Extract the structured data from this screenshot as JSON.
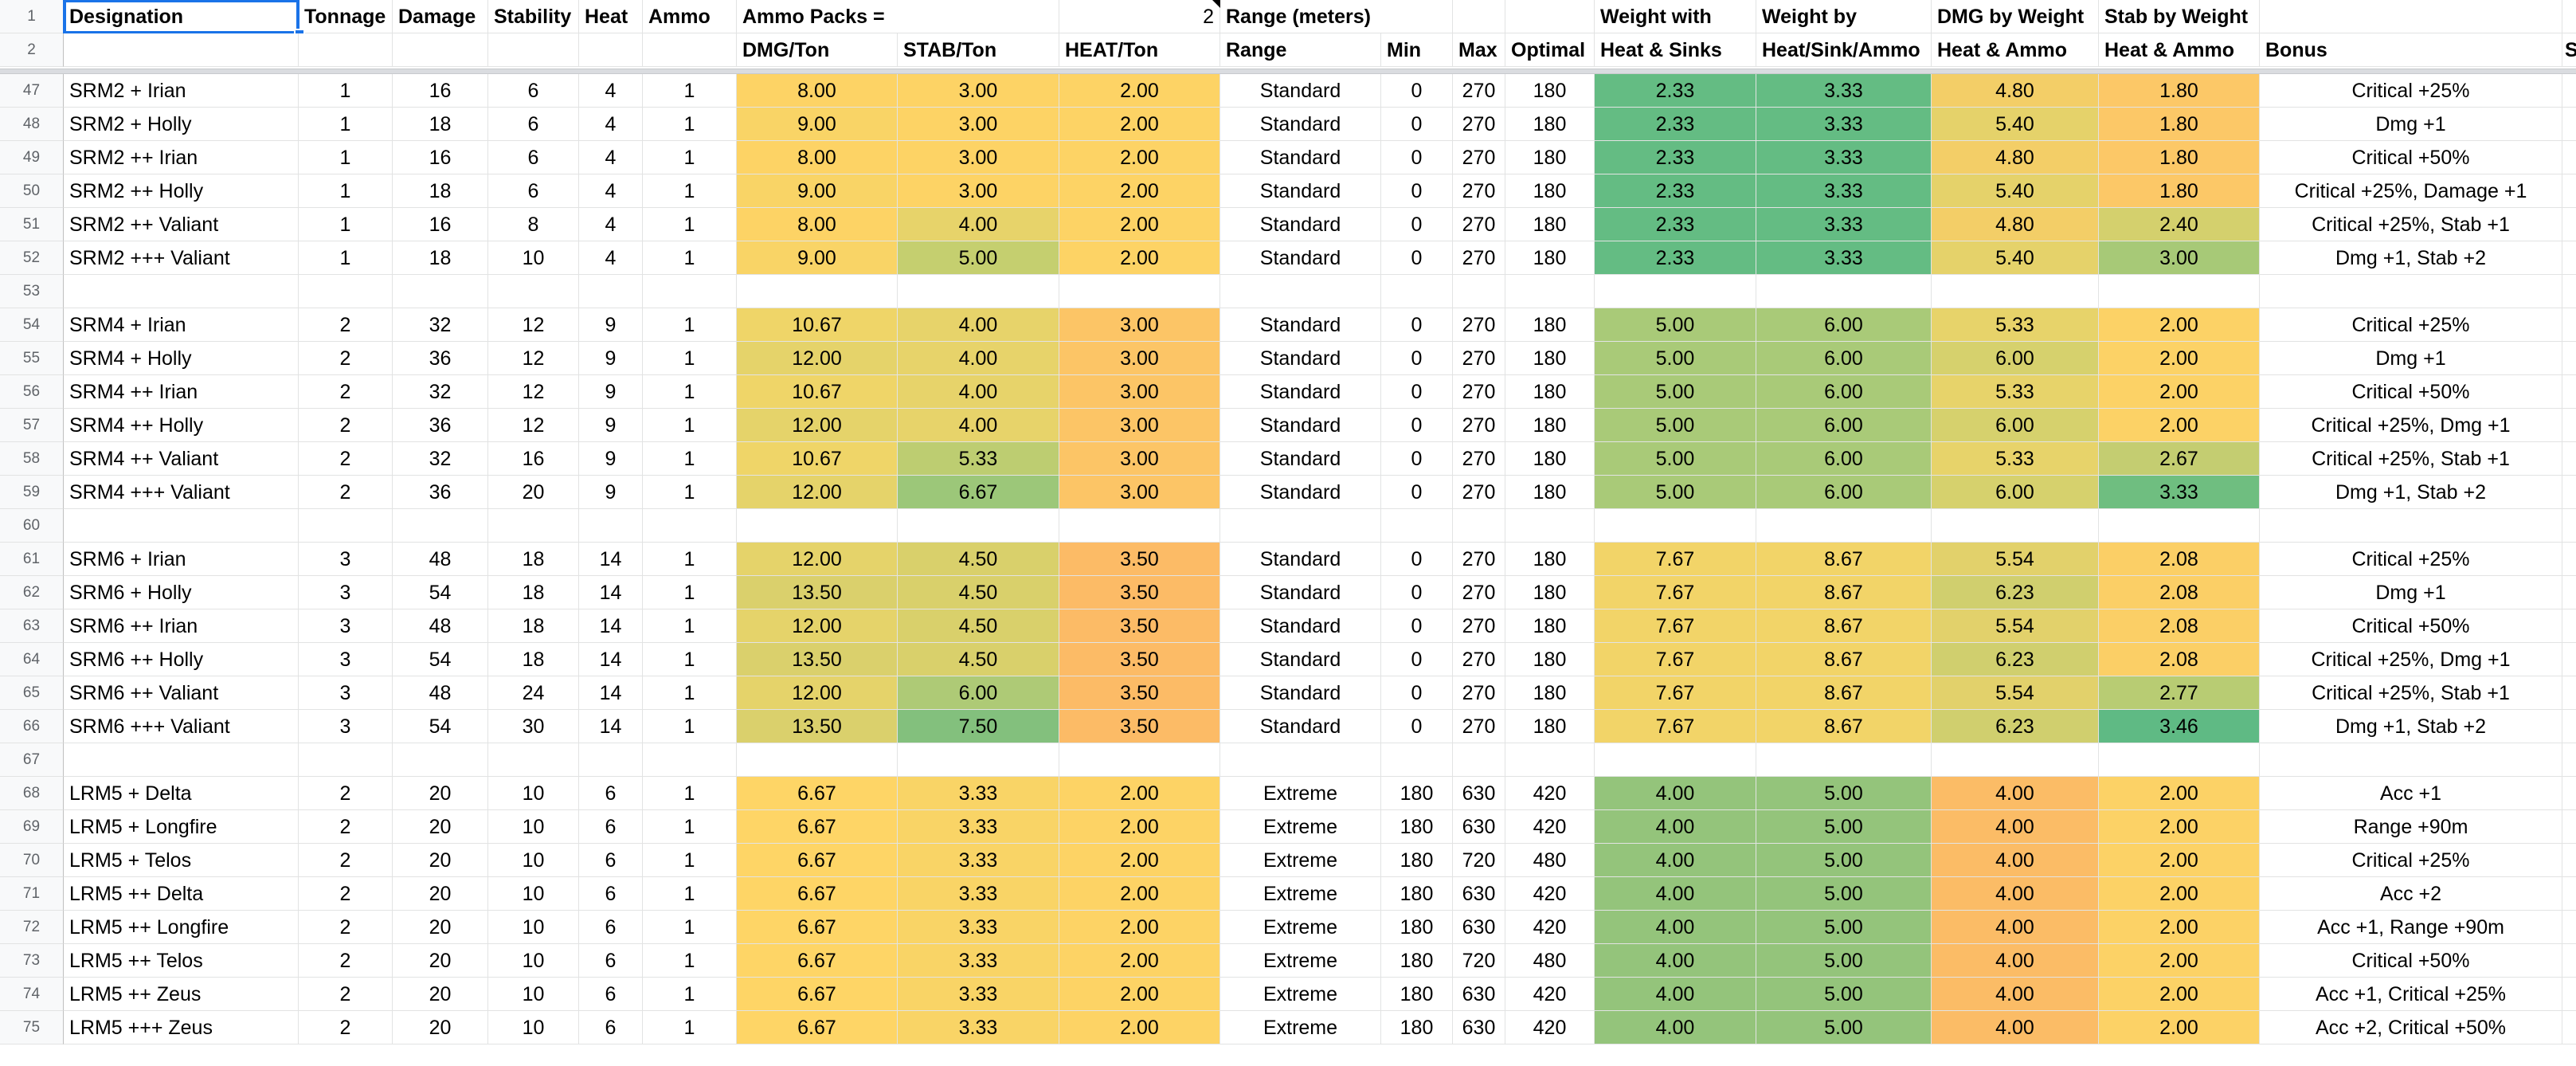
{
  "header": {
    "row1": {
      "num": "1",
      "designation": "Designation",
      "tonnage": "Tonnage",
      "damage": "Damage",
      "stability": "Stability",
      "heat": "Heat",
      "ammo": "Ammo",
      "ammo_packs": "Ammo Packs =",
      "ammo_packs_value": "2",
      "range_meters": "Range (meters)",
      "weight_with": "Weight with",
      "weight_by": "Weight by",
      "dmg_by_weight": "DMG by Weight",
      "stab_by_weight": "Stab by Weight"
    },
    "row2": {
      "num": "2",
      "dmg_ton": "DMG/Ton",
      "stab_ton": "STAB/Ton",
      "heat_ton": "HEAT/Ton",
      "range": "Range",
      "min": "Min",
      "max": "Max",
      "optimal": "Optimal",
      "heat_sinks": "Heat & Sinks",
      "heat_sink_ammo": "Heat/Sink/Ammo",
      "heat_ammo_dmg": "Heat & Ammo",
      "heat_ammo_stab": "Heat & Ammo",
      "bonus": "Bonus",
      "next_col_partial": "S"
    }
  },
  "colors": {
    "selection": "#1a73e8",
    "gridline": "#e2e3e3",
    "row_header_bg": "#f8f9fa"
  },
  "rows": [
    {
      "num": "47",
      "designation": "SRM2 + Irian",
      "tonnage": "1",
      "damage": "16",
      "stability": "6",
      "heat": "4",
      "ammo": "1",
      "dmg_ton": "8.00",
      "stab_ton": "3.00",
      "heat_ton": "2.00",
      "range": "Standard",
      "min": "0",
      "max": "270",
      "optimal": "180",
      "w_sinks": "2.33",
      "w_ammo": "3.33",
      "dmg_w": "4.80",
      "stab_w": "1.80",
      "bonus": "Critical +25%",
      "bg": [
        "#fdd365",
        "#fdd365",
        "#fdd365",
        "#64bc83",
        "#64bc83",
        "#f3ce67",
        "#fcc867"
      ]
    },
    {
      "num": "48",
      "designation": "SRM2 + Holly",
      "tonnage": "1",
      "damage": "18",
      "stability": "6",
      "heat": "4",
      "ammo": "1",
      "dmg_ton": "9.00",
      "stab_ton": "3.00",
      "heat_ton": "2.00",
      "range": "Standard",
      "min": "0",
      "max": "270",
      "optimal": "180",
      "w_sinks": "2.33",
      "w_ammo": "3.33",
      "dmg_w": "5.40",
      "stab_w": "1.80",
      "bonus": "Dmg +1",
      "bg": [
        "#f9d466",
        "#fdd365",
        "#fdd365",
        "#64bc83",
        "#64bc83",
        "#e5d26a",
        "#fcc867"
      ]
    },
    {
      "num": "49",
      "designation": "SRM2 ++ Irian",
      "tonnage": "1",
      "damage": "16",
      "stability": "6",
      "heat": "4",
      "ammo": "1",
      "dmg_ton": "8.00",
      "stab_ton": "3.00",
      "heat_ton": "2.00",
      "range": "Standard",
      "min": "0",
      "max": "270",
      "optimal": "180",
      "w_sinks": "2.33",
      "w_ammo": "3.33",
      "dmg_w": "4.80",
      "stab_w": "1.80",
      "bonus": "Critical +50%",
      "bg": [
        "#fdd365",
        "#fdd365",
        "#fdd365",
        "#64bc83",
        "#64bc83",
        "#f3ce67",
        "#fcc867"
      ]
    },
    {
      "num": "50",
      "designation": "SRM2 ++ Holly",
      "tonnage": "1",
      "damage": "18",
      "stability": "6",
      "heat": "4",
      "ammo": "1",
      "dmg_ton": "9.00",
      "stab_ton": "3.00",
      "heat_ton": "2.00",
      "range": "Standard",
      "min": "0",
      "max": "270",
      "optimal": "180",
      "w_sinks": "2.33",
      "w_ammo": "3.33",
      "dmg_w": "5.40",
      "stab_w": "1.80",
      "bonus": "Critical +25%, Damage +1",
      "bg": [
        "#f9d466",
        "#fdd365",
        "#fdd365",
        "#64bc83",
        "#64bc83",
        "#e5d26a",
        "#fcc867"
      ]
    },
    {
      "num": "51",
      "designation": "SRM2 ++ Valiant",
      "tonnage": "1",
      "damage": "16",
      "stability": "8",
      "heat": "4",
      "ammo": "1",
      "dmg_ton": "8.00",
      "stab_ton": "4.00",
      "heat_ton": "2.00",
      "range": "Standard",
      "min": "0",
      "max": "270",
      "optimal": "180",
      "w_sinks": "2.33",
      "w_ammo": "3.33",
      "dmg_w": "4.80",
      "stab_w": "2.40",
      "bonus": "Critical +25%, Stab +1",
      "bg": [
        "#fdd365",
        "#e7d36a",
        "#fdd365",
        "#64bc83",
        "#64bc83",
        "#f3ce67",
        "#d4d06d"
      ]
    },
    {
      "num": "52",
      "designation": "SRM2 +++ Valiant",
      "tonnage": "1",
      "damage": "18",
      "stability": "10",
      "heat": "4",
      "ammo": "1",
      "dmg_ton": "9.00",
      "stab_ton": "5.00",
      "heat_ton": "2.00",
      "range": "Standard",
      "min": "0",
      "max": "270",
      "optimal": "180",
      "w_sinks": "2.33",
      "w_ammo": "3.33",
      "dmg_w": "5.40",
      "stab_w": "3.00",
      "bonus": "Dmg +1, Stab +2",
      "bg": [
        "#f9d466",
        "#c5cf6f",
        "#fdd365",
        "#64bc83",
        "#64bc83",
        "#e5d26a",
        "#a7c977"
      ]
    },
    {
      "num": "53",
      "blank": true
    },
    {
      "num": "54",
      "designation": "SRM4 + Irian",
      "tonnage": "2",
      "damage": "32",
      "stability": "12",
      "heat": "9",
      "ammo": "1",
      "dmg_ton": "10.67",
      "stab_ton": "4.00",
      "heat_ton": "3.00",
      "range": "Standard",
      "min": "0",
      "max": "270",
      "optimal": "180",
      "w_sinks": "5.00",
      "w_ammo": "6.00",
      "dmg_w": "5.33",
      "stab_w": "2.00",
      "bonus": "Critical +25%",
      "bg": [
        "#efd568",
        "#e7d36a",
        "#fcc566",
        "#a9ca78",
        "#a9ca78",
        "#e7d36a",
        "#fcd266"
      ]
    },
    {
      "num": "55",
      "designation": "SRM4 + Holly",
      "tonnage": "2",
      "damage": "36",
      "stability": "12",
      "heat": "9",
      "ammo": "1",
      "dmg_ton": "12.00",
      "stab_ton": "4.00",
      "heat_ton": "3.00",
      "range": "Standard",
      "min": "0",
      "max": "270",
      "optimal": "180",
      "w_sinks": "5.00",
      "w_ammo": "6.00",
      "dmg_w": "6.00",
      "stab_w": "2.00",
      "bonus": "Dmg +1",
      "bg": [
        "#e5d36a",
        "#e7d36a",
        "#fcc566",
        "#a9ca78",
        "#a9ca78",
        "#d6d16d",
        "#fcd266"
      ]
    },
    {
      "num": "56",
      "designation": "SRM4 ++ Irian",
      "tonnage": "2",
      "damage": "32",
      "stability": "12",
      "heat": "9",
      "ammo": "1",
      "dmg_ton": "10.67",
      "stab_ton": "4.00",
      "heat_ton": "3.00",
      "range": "Standard",
      "min": "0",
      "max": "270",
      "optimal": "180",
      "w_sinks": "5.00",
      "w_ammo": "6.00",
      "dmg_w": "5.33",
      "stab_w": "2.00",
      "bonus": "Critical +50%",
      "bg": [
        "#efd568",
        "#e7d36a",
        "#fcc566",
        "#a9ca78",
        "#a9ca78",
        "#e7d36a",
        "#fcd266"
      ]
    },
    {
      "num": "57",
      "designation": "SRM4 ++ Holly",
      "tonnage": "2",
      "damage": "36",
      "stability": "12",
      "heat": "9",
      "ammo": "1",
      "dmg_ton": "12.00",
      "stab_ton": "4.00",
      "heat_ton": "3.00",
      "range": "Standard",
      "min": "0",
      "max": "270",
      "optimal": "180",
      "w_sinks": "5.00",
      "w_ammo": "6.00",
      "dmg_w": "6.00",
      "stab_w": "2.00",
      "bonus": "Critical +25%, Dmg +1",
      "bg": [
        "#e5d36a",
        "#e7d36a",
        "#fcc566",
        "#a9ca78",
        "#a9ca78",
        "#d6d16d",
        "#fcd266"
      ]
    },
    {
      "num": "58",
      "designation": "SRM4 ++ Valiant",
      "tonnage": "2",
      "damage": "32",
      "stability": "16",
      "heat": "9",
      "ammo": "1",
      "dmg_ton": "10.67",
      "stab_ton": "5.33",
      "heat_ton": "3.00",
      "range": "Standard",
      "min": "0",
      "max": "270",
      "optimal": "180",
      "w_sinks": "5.00",
      "w_ammo": "6.00",
      "dmg_w": "5.33",
      "stab_w": "2.67",
      "bonus": "Critical +25%, Stab +1",
      "bg": [
        "#efd568",
        "#bdcd71",
        "#fcc566",
        "#a9ca78",
        "#a9ca78",
        "#e7d36a",
        "#c4cd71"
      ]
    },
    {
      "num": "59",
      "designation": "SRM4 +++ Valiant",
      "tonnage": "2",
      "damage": "36",
      "stability": "20",
      "heat": "9",
      "ammo": "1",
      "dmg_ton": "12.00",
      "stab_ton": "6.67",
      "heat_ton": "3.00",
      "range": "Standard",
      "min": "0",
      "max": "270",
      "optimal": "180",
      "w_sinks": "5.00",
      "w_ammo": "6.00",
      "dmg_w": "6.00",
      "stab_w": "3.33",
      "bonus": "Dmg +1, Stab +2",
      "bg": [
        "#e5d36a",
        "#9cc779",
        "#fcc566",
        "#a9ca78",
        "#a9ca78",
        "#d6d16d",
        "#6fbe80"
      ]
    },
    {
      "num": "60",
      "blank": true
    },
    {
      "num": "61",
      "designation": "SRM6 + Irian",
      "tonnage": "3",
      "damage": "48",
      "stability": "18",
      "heat": "14",
      "ammo": "1",
      "dmg_ton": "12.00",
      "stab_ton": "4.50",
      "heat_ton": "3.50",
      "range": "Standard",
      "min": "0",
      "max": "270",
      "optimal": "180",
      "w_sinks": "7.67",
      "w_ammo": "8.67",
      "dmg_w": "5.54",
      "stab_w": "2.08",
      "bonus": "Critical +25%",
      "bg": [
        "#e5d36a",
        "#d9d06b",
        "#fcbb66",
        "#f2d468",
        "#f2d468",
        "#e2d16b",
        "#fbcf66"
      ]
    },
    {
      "num": "62",
      "designation": "SRM6 + Holly",
      "tonnage": "3",
      "damage": "54",
      "stability": "18",
      "heat": "14",
      "ammo": "1",
      "dmg_ton": "13.50",
      "stab_ton": "4.50",
      "heat_ton": "3.50",
      "range": "Standard",
      "min": "0",
      "max": "270",
      "optimal": "180",
      "w_sinks": "7.67",
      "w_ammo": "8.67",
      "dmg_w": "6.23",
      "stab_w": "2.08",
      "bonus": "Dmg +1",
      "bg": [
        "#dad06c",
        "#d9d06b",
        "#fcbb66",
        "#f2d468",
        "#f2d468",
        "#d0cf6e",
        "#fbcf66"
      ]
    },
    {
      "num": "63",
      "designation": "SRM6 ++ Irian",
      "tonnage": "3",
      "damage": "48",
      "stability": "18",
      "heat": "14",
      "ammo": "1",
      "dmg_ton": "12.00",
      "stab_ton": "4.50",
      "heat_ton": "3.50",
      "range": "Standard",
      "min": "0",
      "max": "270",
      "optimal": "180",
      "w_sinks": "7.67",
      "w_ammo": "8.67",
      "dmg_w": "5.54",
      "stab_w": "2.08",
      "bonus": "Critical +50%",
      "bg": [
        "#e5d36a",
        "#d9d06b",
        "#fcbb66",
        "#f2d468",
        "#f2d468",
        "#e2d16b",
        "#fbcf66"
      ]
    },
    {
      "num": "64",
      "designation": "SRM6 ++ Holly",
      "tonnage": "3",
      "damage": "54",
      "stability": "18",
      "heat": "14",
      "ammo": "1",
      "dmg_ton": "13.50",
      "stab_ton": "4.50",
      "heat_ton": "3.50",
      "range": "Standard",
      "min": "0",
      "max": "270",
      "optimal": "180",
      "w_sinks": "7.67",
      "w_ammo": "8.67",
      "dmg_w": "6.23",
      "stab_w": "2.08",
      "bonus": "Critical +25%, Dmg +1",
      "bg": [
        "#dad06c",
        "#d9d06b",
        "#fcbb66",
        "#f2d468",
        "#f2d468",
        "#d0cf6e",
        "#fbcf66"
      ]
    },
    {
      "num": "65",
      "designation": "SRM6 ++ Valiant",
      "tonnage": "3",
      "damage": "48",
      "stability": "24",
      "heat": "14",
      "ammo": "1",
      "dmg_ton": "12.00",
      "stab_ton": "6.00",
      "heat_ton": "3.50",
      "range": "Standard",
      "min": "0",
      "max": "270",
      "optimal": "180",
      "w_sinks": "7.67",
      "w_ammo": "8.67",
      "dmg_w": "5.54",
      "stab_w": "2.77",
      "bonus": "Critical +25%, Stab +1",
      "bg": [
        "#e5d36a",
        "#aeca76",
        "#fcbb66",
        "#f2d468",
        "#f2d468",
        "#e2d16b",
        "#b8cc73"
      ]
    },
    {
      "num": "66",
      "designation": "SRM6 +++ Valiant",
      "tonnage": "3",
      "damage": "54",
      "stability": "30",
      "heat": "14",
      "ammo": "1",
      "dmg_ton": "13.50",
      "stab_ton": "7.50",
      "heat_ton": "3.50",
      "range": "Standard",
      "min": "0",
      "max": "270",
      "optimal": "180",
      "w_sinks": "7.67",
      "w_ammo": "8.67",
      "dmg_w": "6.23",
      "stab_w": "3.46",
      "bonus": "Dmg +1, Stab +2",
      "bg": [
        "#dad06c",
        "#83c07d",
        "#fcbb66",
        "#f2d468",
        "#f2d468",
        "#d0cf6e",
        "#5fba84"
      ]
    },
    {
      "num": "67",
      "blank": true
    },
    {
      "num": "68",
      "designation": "LRM5 + Delta",
      "tonnage": "2",
      "damage": "20",
      "stability": "10",
      "heat": "6",
      "ammo": "1",
      "dmg_ton": "6.67",
      "stab_ton": "3.33",
      "heat_ton": "2.00",
      "range": "Extreme",
      "min": "180",
      "max": "630",
      "optimal": "420",
      "w_sinks": "4.00",
      "w_ammo": "5.00",
      "dmg_w": "4.00",
      "stab_w": "2.00",
      "bonus": "Acc +1",
      "bg": [
        "#fed566",
        "#f9d466",
        "#fdd365",
        "#94c47b",
        "#94c47b",
        "#fbbc66",
        "#fcd266"
      ]
    },
    {
      "num": "69",
      "designation": "LRM5 + Longfire",
      "tonnage": "2",
      "damage": "20",
      "stability": "10",
      "heat": "6",
      "ammo": "1",
      "dmg_ton": "6.67",
      "stab_ton": "3.33",
      "heat_ton": "2.00",
      "range": "Extreme",
      "min": "180",
      "max": "630",
      "optimal": "420",
      "w_sinks": "4.00",
      "w_ammo": "5.00",
      "dmg_w": "4.00",
      "stab_w": "2.00",
      "bonus": "Range +90m",
      "bg": [
        "#fed566",
        "#f9d466",
        "#fdd365",
        "#94c47b",
        "#94c47b",
        "#fbbc66",
        "#fcd266"
      ]
    },
    {
      "num": "70",
      "designation": "LRM5 + Telos",
      "tonnage": "2",
      "damage": "20",
      "stability": "10",
      "heat": "6",
      "ammo": "1",
      "dmg_ton": "6.67",
      "stab_ton": "3.33",
      "heat_ton": "2.00",
      "range": "Extreme",
      "min": "180",
      "max": "720",
      "optimal": "480",
      "w_sinks": "4.00",
      "w_ammo": "5.00",
      "dmg_w": "4.00",
      "stab_w": "2.00",
      "bonus": "Critical +25%",
      "bg": [
        "#fed566",
        "#f9d466",
        "#fdd365",
        "#94c47b",
        "#94c47b",
        "#fbbc66",
        "#fcd266"
      ]
    },
    {
      "num": "71",
      "designation": "LRM5 ++ Delta",
      "tonnage": "2",
      "damage": "20",
      "stability": "10",
      "heat": "6",
      "ammo": "1",
      "dmg_ton": "6.67",
      "stab_ton": "3.33",
      "heat_ton": "2.00",
      "range": "Extreme",
      "min": "180",
      "max": "630",
      "optimal": "420",
      "w_sinks": "4.00",
      "w_ammo": "5.00",
      "dmg_w": "4.00",
      "stab_w": "2.00",
      "bonus": "Acc +2",
      "bg": [
        "#fed566",
        "#f9d466",
        "#fdd365",
        "#94c47b",
        "#94c47b",
        "#fbbc66",
        "#fcd266"
      ]
    },
    {
      "num": "72",
      "designation": "LRM5 ++ Longfire",
      "tonnage": "2",
      "damage": "20",
      "stability": "10",
      "heat": "6",
      "ammo": "1",
      "dmg_ton": "6.67",
      "stab_ton": "3.33",
      "heat_ton": "2.00",
      "range": "Extreme",
      "min": "180",
      "max": "630",
      "optimal": "420",
      "w_sinks": "4.00",
      "w_ammo": "5.00",
      "dmg_w": "4.00",
      "stab_w": "2.00",
      "bonus": "Acc +1, Range +90m",
      "bg": [
        "#fed566",
        "#f9d466",
        "#fdd365",
        "#94c47b",
        "#94c47b",
        "#fbbc66",
        "#fcd266"
      ]
    },
    {
      "num": "73",
      "designation": "LRM5 ++ Telos",
      "tonnage": "2",
      "damage": "20",
      "stability": "10",
      "heat": "6",
      "ammo": "1",
      "dmg_ton": "6.67",
      "stab_ton": "3.33",
      "heat_ton": "2.00",
      "range": "Extreme",
      "min": "180",
      "max": "720",
      "optimal": "480",
      "w_sinks": "4.00",
      "w_ammo": "5.00",
      "dmg_w": "4.00",
      "stab_w": "2.00",
      "bonus": "Critical +50%",
      "bg": [
        "#fed566",
        "#f9d466",
        "#fdd365",
        "#94c47b",
        "#94c47b",
        "#fbbc66",
        "#fcd266"
      ]
    },
    {
      "num": "74",
      "designation": "LRM5 ++ Zeus",
      "tonnage": "2",
      "damage": "20",
      "stability": "10",
      "heat": "6",
      "ammo": "1",
      "dmg_ton": "6.67",
      "stab_ton": "3.33",
      "heat_ton": "2.00",
      "range": "Extreme",
      "min": "180",
      "max": "630",
      "optimal": "420",
      "w_sinks": "4.00",
      "w_ammo": "5.00",
      "dmg_w": "4.00",
      "stab_w": "2.00",
      "bonus": "Acc +1, Critical +25%",
      "bg": [
        "#fed566",
        "#f9d466",
        "#fdd365",
        "#94c47b",
        "#94c47b",
        "#fbbc66",
        "#fcd266"
      ]
    },
    {
      "num": "75",
      "designation": "LRM5 +++ Zeus",
      "tonnage": "2",
      "damage": "20",
      "stability": "10",
      "heat": "6",
      "ammo": "1",
      "dmg_ton": "6.67",
      "stab_ton": "3.33",
      "heat_ton": "2.00",
      "range": "Extreme",
      "min": "180",
      "max": "630",
      "optimal": "420",
      "w_sinks": "4.00",
      "w_ammo": "5.00",
      "dmg_w": "4.00",
      "stab_w": "2.00",
      "bonus": "Acc +2, Critical +50%",
      "bg": [
        "#fed566",
        "#f9d466",
        "#fdd365",
        "#94c47b",
        "#94c47b",
        "#fbbc66",
        "#fcd266"
      ]
    }
  ]
}
